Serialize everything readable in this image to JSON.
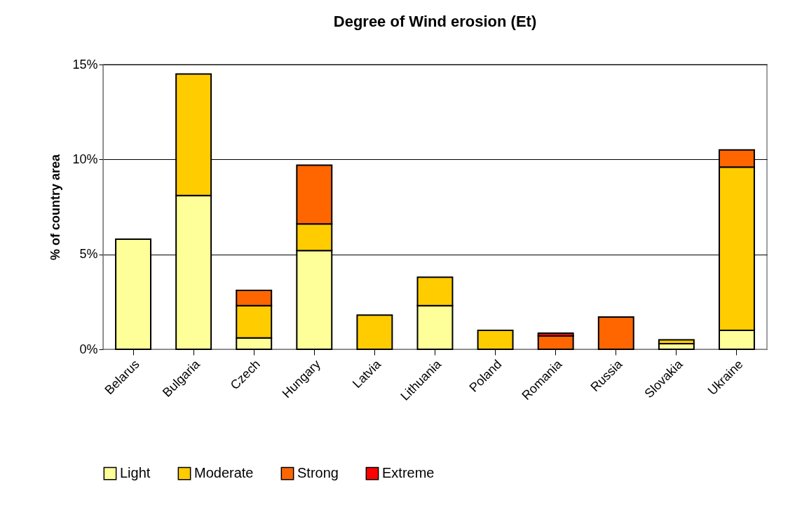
{
  "chart_data": {
    "type": "bar",
    "title": "Degree of Wind erosion (Et)",
    "ylabel": "% of country area",
    "stacked": true,
    "categories": [
      "Belarus",
      "Bulgaria",
      "Czech",
      "Hungary",
      "Latvia",
      "Lithuania",
      "Poland",
      "Romania",
      "Russia",
      "Slovakia",
      "Ukraine"
    ],
    "series": [
      {
        "name": "Light",
        "color": "#ffff99",
        "values": [
          5.8,
          8.1,
          0.6,
          5.2,
          null,
          2.3,
          null,
          null,
          null,
          0.3,
          1.0
        ]
      },
      {
        "name": "Moderate",
        "color": "#ffcc00",
        "values": [
          null,
          6.4,
          1.7,
          1.4,
          1.8,
          1.5,
          1.0,
          null,
          null,
          0.2,
          8.6
        ]
      },
      {
        "name": "Strong",
        "color": "#ff6600",
        "values": [
          null,
          null,
          0.8,
          3.1,
          null,
          null,
          null,
          0.7,
          1.7,
          null,
          0.9
        ]
      },
      {
        "name": "Extreme",
        "color": "#ff0000",
        "values": [
          null,
          null,
          null,
          null,
          null,
          null,
          null,
          0.15,
          null,
          null,
          null
        ]
      }
    ],
    "ylim": [
      0,
      15
    ],
    "yticks": [
      {
        "value": 0,
        "label": "0%"
      },
      {
        "value": 5,
        "label": "5%"
      },
      {
        "value": 10,
        "label": "10%"
      },
      {
        "value": 15,
        "label": "15%"
      }
    ],
    "grid": "y",
    "legend": "bottom"
  }
}
